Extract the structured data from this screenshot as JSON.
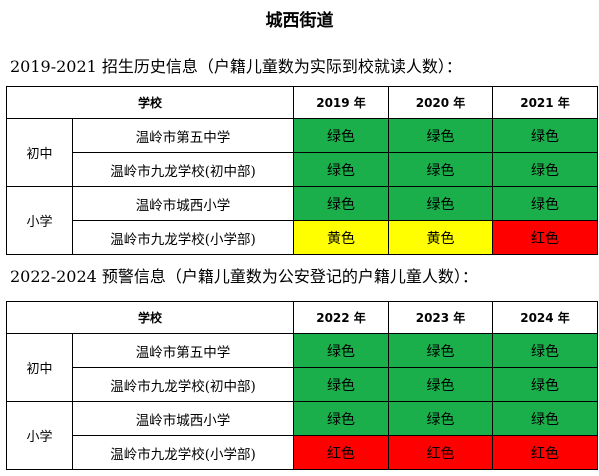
{
  "title": "城西街道",
  "sections": [
    {
      "heading": "2019-2021 招生历史信息（户籍儿童数为实际到校就读人数）：",
      "header": {
        "school": "学校",
        "years": [
          "2019 年",
          "2020 年",
          "2021 年"
        ]
      },
      "groups": [
        {
          "label": "初中",
          "rows": [
            {
              "school": "温岭市第五中学",
              "cells": [
                {
                  "text": "绿色",
                  "color": "green"
                },
                {
                  "text": "绿色",
                  "color": "green"
                },
                {
                  "text": "绿色",
                  "color": "green"
                }
              ]
            },
            {
              "school": "温岭市九龙学校(初中部)",
              "cells": [
                {
                  "text": "绿色",
                  "color": "green"
                },
                {
                  "text": "绿色",
                  "color": "green"
                },
                {
                  "text": "绿色",
                  "color": "green"
                }
              ]
            }
          ]
        },
        {
          "label": "小学",
          "rows": [
            {
              "school": "温岭市城西小学",
              "cells": [
                {
                  "text": "绿色",
                  "color": "green"
                },
                {
                  "text": "绿色",
                  "color": "green"
                },
                {
                  "text": "绿色",
                  "color": "green"
                }
              ]
            },
            {
              "school": "温岭市九龙学校(小学部)",
              "cells": [
                {
                  "text": "黄色",
                  "color": "yellow"
                },
                {
                  "text": "黄色",
                  "color": "yellow"
                },
                {
                  "text": "红色",
                  "color": "red"
                }
              ]
            }
          ]
        }
      ]
    },
    {
      "heading": "2022-2024 预警信息（户籍儿童数为公安登记的户籍儿童人数）：",
      "header": {
        "school": "学校",
        "years": [
          "2022 年",
          "2023 年",
          "2024 年"
        ]
      },
      "groups": [
        {
          "label": "初中",
          "rows": [
            {
              "school": "温岭市第五中学",
              "cells": [
                {
                  "text": "绿色",
                  "color": "green"
                },
                {
                  "text": "绿色",
                  "color": "green"
                },
                {
                  "text": "绿色",
                  "color": "green"
                }
              ]
            },
            {
              "school": "温岭市九龙学校(初中部)",
              "cells": [
                {
                  "text": "绿色",
                  "color": "green"
                },
                {
                  "text": "绿色",
                  "color": "green"
                },
                {
                  "text": "绿色",
                  "color": "green"
                }
              ]
            }
          ]
        },
        {
          "label": "小学",
          "rows": [
            {
              "school": "温岭市城西小学",
              "cells": [
                {
                  "text": "绿色",
                  "color": "green"
                },
                {
                  "text": "绿色",
                  "color": "green"
                },
                {
                  "text": "绿色",
                  "color": "green"
                }
              ]
            },
            {
              "school": "温岭市九龙学校(小学部)",
              "cells": [
                {
                  "text": "红色",
                  "color": "red"
                },
                {
                  "text": "红色",
                  "color": "red"
                },
                {
                  "text": "红色",
                  "color": "red"
                }
              ]
            }
          ]
        }
      ]
    }
  ],
  "colors": {
    "green": "#1aaf4b",
    "yellow": "#ffff00",
    "red": "#ff0000"
  }
}
